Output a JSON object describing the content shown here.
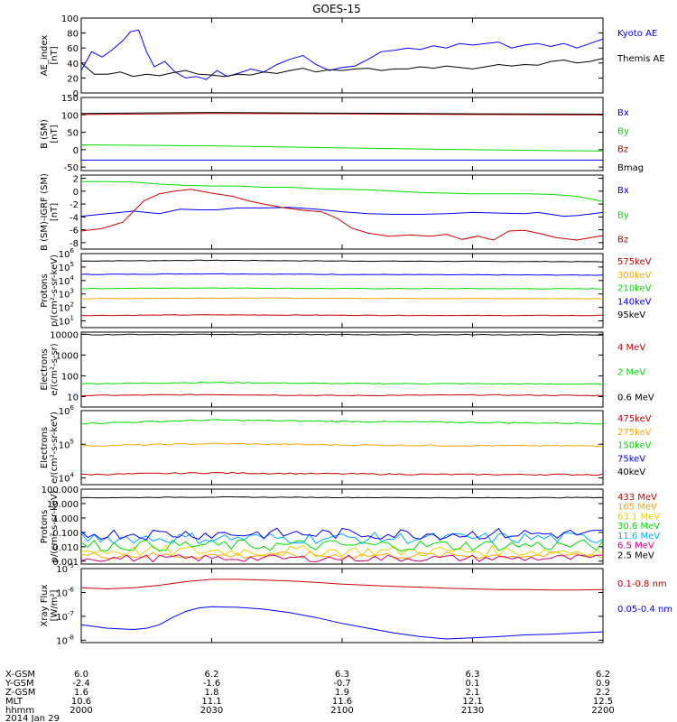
{
  "figure_title": "GOES-15",
  "colors": {
    "black": "#000000",
    "blue": "#0000ff",
    "green": "#00dd00",
    "red": "#cc0000",
    "orange": "#ffa500",
    "yellow": "#e8d000",
    "cyan": "#00aaff",
    "magenta": "#cc0077"
  },
  "x_time_ticks": [
    "2000",
    "2030",
    "2100",
    "2130",
    "2200"
  ],
  "footer": {
    "row_labels": [
      "X-GSM",
      "Y-GSM",
      "Z-GSM",
      "MLT",
      "hhmm",
      "2014 Jan 29"
    ],
    "columns": [
      [
        "6.0",
        "-2.4",
        "1.6",
        "10.6",
        "2000"
      ],
      [
        "6.2",
        "-1.6",
        "1.8",
        "11.1",
        "2030"
      ],
      [
        "6.3",
        "-0.7",
        "1.9",
        "11.6",
        "2100"
      ],
      [
        "6.3",
        "0.1",
        "2.1",
        "12.1",
        "2130"
      ],
      [
        "6.2",
        "0.9",
        "2.2",
        "12.5",
        "2200"
      ]
    ]
  },
  "chart_data": [
    {
      "type": "line",
      "ylabel": [
        "AE_index",
        "[nT]"
      ],
      "ylim": [
        0,
        100
      ],
      "yticks": [
        "0",
        "20",
        "40",
        "60",
        "80",
        "100"
      ],
      "series": [
        {
          "name": "Kyoto AE",
          "color": "blue",
          "x": [
            0,
            4,
            8,
            12,
            16,
            19,
            22,
            25,
            28,
            32,
            36,
            40,
            44,
            48,
            52,
            56,
            60,
            65,
            70,
            75,
            80,
            85,
            90,
            95,
            100,
            105,
            110,
            115,
            120,
            125,
            130,
            135,
            140,
            145,
            150,
            155,
            160,
            165,
            170,
            175,
            180,
            185,
            190,
            195,
            200
          ],
          "y": [
            30,
            55,
            48,
            58,
            70,
            82,
            84,
            55,
            35,
            42,
            28,
            20,
            22,
            18,
            30,
            22,
            26,
            32,
            28,
            38,
            45,
            50,
            38,
            30,
            34,
            36,
            45,
            55,
            57,
            60,
            58,
            63,
            60,
            66,
            64,
            66,
            68,
            60,
            64,
            66,
            62,
            66,
            60,
            66,
            72
          ]
        },
        {
          "name": "Themis AE",
          "color": "black",
          "x": [
            0,
            5,
            10,
            15,
            20,
            25,
            30,
            35,
            40,
            45,
            50,
            55,
            60,
            65,
            70,
            75,
            80,
            85,
            90,
            95,
            100,
            105,
            110,
            115,
            120,
            125,
            130,
            135,
            140,
            145,
            150,
            155,
            160,
            165,
            170,
            175,
            180,
            185,
            190,
            195,
            200
          ],
          "y": [
            40,
            25,
            25,
            28,
            22,
            25,
            23,
            27,
            30,
            25,
            24,
            22,
            25,
            24,
            28,
            26,
            30,
            33,
            28,
            31,
            30,
            32,
            33,
            30,
            32,
            32,
            35,
            33,
            36,
            34,
            32,
            35,
            38,
            36,
            38,
            37,
            42,
            44,
            40,
            42,
            46
          ]
        }
      ]
    },
    {
      "type": "line",
      "ylabel": [
        "B (SM)",
        "[nT]"
      ],
      "ylim": [
        -60,
        150
      ],
      "yticks": [
        "-50",
        "0",
        "50",
        "100",
        "150"
      ],
      "series": [
        {
          "name": "Bx",
          "color": "blue",
          "x": [
            0,
            200
          ],
          "y": [
            -30,
            -30
          ]
        },
        {
          "name": "By",
          "color": "green",
          "x": [
            0,
            50,
            100,
            150,
            200
          ],
          "y": [
            14,
            11,
            5,
            0,
            -4
          ]
        },
        {
          "name": "Bz",
          "color": "red",
          "x": [
            0,
            50,
            100,
            150,
            200
          ],
          "y": [
            101,
            104,
            103,
            101,
            100
          ]
        },
        {
          "name": "Bmag",
          "color": "black",
          "x": [
            0,
            50,
            100,
            150,
            200
          ],
          "y": [
            104,
            107,
            105,
            103,
            102
          ]
        }
      ]
    },
    {
      "type": "line",
      "ylabel": [
        "B (SM)-IGRF (SM)",
        "[nT]"
      ],
      "ylim": [
        -9,
        2.5
      ],
      "yticks": [
        "-8",
        "-6",
        "-4",
        "-2",
        "0",
        "2"
      ],
      "series": [
        {
          "name": "Bx",
          "color": "blue",
          "x": [
            0,
            10,
            20,
            25,
            30,
            38,
            45,
            52,
            60,
            70,
            80,
            90,
            100,
            110,
            120,
            130,
            140,
            150,
            160,
            170,
            175,
            180,
            185,
            190,
            200
          ],
          "y": [
            -3.9,
            -3.5,
            -3.1,
            -3.3,
            -3.5,
            -2.8,
            -2.9,
            -2.9,
            -2.6,
            -2.6,
            -2.5,
            -2.8,
            -3.2,
            -3.5,
            -3.6,
            -3.6,
            -3.5,
            -3.3,
            -3.4,
            -3.5,
            -3.3,
            -3.6,
            -3.9,
            -3.8,
            -3.3
          ]
        },
        {
          "name": "By",
          "color": "green",
          "x": [
            0,
            10,
            20,
            30,
            40,
            50,
            60,
            70,
            80,
            90,
            100,
            110,
            120,
            130,
            140,
            150,
            160,
            170,
            180,
            190,
            200
          ],
          "y": [
            1.5,
            1.5,
            1.4,
            1.1,
            0.9,
            0.8,
            0.8,
            0.6,
            0.6,
            0.4,
            0.3,
            0.2,
            0,
            -0.2,
            -0.3,
            -0.4,
            -0.4,
            -0.4,
            -0.5,
            -0.8,
            -1.6
          ]
        },
        {
          "name": "Bz",
          "color": "red",
          "x": [
            0,
            8,
            16,
            24,
            30,
            36,
            42,
            50,
            58,
            64,
            70,
            78,
            86,
            92,
            98,
            104,
            110,
            118,
            126,
            134,
            140,
            146,
            152,
            158,
            164,
            170,
            176,
            182,
            190,
            200
          ],
          "y": [
            -6.2,
            -5.8,
            -4.8,
            -1.5,
            -0.4,
            0,
            0.3,
            -0.3,
            -0.8,
            -1.5,
            -2,
            -2.6,
            -3,
            -3.2,
            -4.2,
            -5.8,
            -6.5,
            -7,
            -6.8,
            -7,
            -6.7,
            -7.5,
            -7,
            -7.6,
            -6.2,
            -6.1,
            -6.6,
            -7.2,
            -7.6,
            -6.9
          ]
        }
      ]
    },
    {
      "type": "line",
      "ylabel": [
        "Protons",
        "p/(cm²-s-sr-keV)"
      ],
      "scale": "log",
      "ylim_exp": [
        0.5,
        6
      ],
      "yticks": [
        {
          "base": "10",
          "exp": "1"
        },
        {
          "base": "10",
          "exp": "2"
        },
        {
          "base": "10",
          "exp": "3"
        },
        {
          "base": "10",
          "exp": "4"
        },
        {
          "base": "10",
          "exp": "5"
        },
        {
          "base": "10",
          "exp": "6"
        }
      ],
      "series": [
        {
          "name": "575keV",
          "color": "black",
          "x": [
            0,
            50,
            100,
            150,
            200
          ],
          "y_exp": [
            5.45,
            5.5,
            5.45,
            5.42,
            5.4
          ]
        },
        {
          "name": "300keV",
          "color": "blue",
          "x": [
            0,
            50,
            100,
            150,
            200
          ],
          "y_exp": [
            4.45,
            4.5,
            4.45,
            4.42,
            4.4
          ]
        },
        {
          "name": "210keV",
          "color": "green",
          "x": [
            0,
            50,
            100,
            150,
            200
          ],
          "y_exp": [
            3.4,
            3.45,
            3.4,
            3.4,
            3.38
          ]
        },
        {
          "name": "140keV",
          "color": "orange",
          "x": [
            0,
            50,
            100,
            150,
            200
          ],
          "y_exp": [
            2.65,
            2.7,
            2.68,
            2.66,
            2.65
          ]
        },
        {
          "name": "95keV",
          "color": "red",
          "x": [
            0,
            50,
            100,
            150,
            200
          ],
          "y_exp": [
            1.4,
            1.45,
            1.42,
            1.4,
            1.4
          ]
        }
      ],
      "legend_colors": [
        "red",
        "orange",
        "green",
        "blue",
        "black"
      ]
    },
    {
      "type": "line",
      "ylabel": [
        "Electrons",
        "e/(cm²-s-sr)"
      ],
      "scale": "log",
      "ylim_exp": [
        0.5,
        4.1
      ],
      "yticks": [
        {
          "base": "10",
          "exp": ""
        },
        {
          "base": "100",
          "exp": ""
        },
        {
          "base": "1000",
          "exp": ""
        },
        {
          "base": "10000",
          "exp": ""
        }
      ],
      "series": [
        {
          "name": "4 MeV",
          "color": "red",
          "x": [
            0,
            50,
            100,
            150,
            200
          ],
          "y_exp": [
            1.05,
            1.1,
            1.05,
            1.08,
            1.05
          ]
        },
        {
          "name": "2 MeV",
          "color": "green",
          "x": [
            0,
            50,
            100,
            150,
            200
          ],
          "y_exp": [
            1.62,
            1.68,
            1.63,
            1.62,
            1.6
          ]
        },
        {
          "name": "0.6 MeV",
          "color": "black",
          "x": [
            0,
            50,
            100,
            150,
            200
          ],
          "y_exp": [
            3.98,
            4.0,
            3.98,
            3.98,
            3.97
          ]
        }
      ]
    },
    {
      "type": "line",
      "ylabel": [
        "Electrons",
        "e/(cm²-s-sr-keV)"
      ],
      "scale": "log",
      "ylim_exp": [
        3.8,
        6
      ],
      "yticks": [
        {
          "base": "10",
          "exp": "4"
        },
        {
          "base": "10",
          "exp": "5"
        },
        {
          "base": "10",
          "exp": "6"
        }
      ],
      "series": [
        {
          "name": "475keV",
          "color": "red",
          "x": [
            0,
            50,
            100,
            150,
            200
          ],
          "y_exp": [
            4.1,
            4.15,
            4.12,
            4.1,
            4.1
          ]
        },
        {
          "name": "275keV",
          "color": "orange",
          "x": [
            0,
            50,
            100,
            150,
            200
          ],
          "y_exp": [
            4.95,
            5.02,
            4.98,
            4.96,
            4.95
          ]
        },
        {
          "name": "150keV",
          "color": "green",
          "x": [
            0,
            50,
            100,
            150,
            200
          ],
          "y_exp": [
            5.62,
            5.72,
            5.68,
            5.65,
            5.62
          ]
        }
      ],
      "legend_extra": [
        {
          "name": "75keV",
          "color": "blue"
        },
        {
          "name": "40keV",
          "color": "black"
        }
      ]
    },
    {
      "type": "line",
      "ylabel": [
        "Protons",
        "p/(cm²-s-sr-keV)"
      ],
      "scale": "log",
      "ylim_exp": [
        -3.2,
        2
      ],
      "yticks": [
        {
          "base": "0.001",
          "exp": ""
        },
        {
          "base": "0.010",
          "exp": ""
        },
        {
          "base": "0.100",
          "exp": ""
        },
        {
          "base": "1.000",
          "exp": ""
        },
        {
          "base": "10.000",
          "exp": ""
        },
        {
          "base": "100.000",
          "exp": ""
        }
      ],
      "series": [
        {
          "name": "433 MeV",
          "color": "black",
          "x": [
            0,
            50,
            100,
            150,
            200
          ],
          "y_exp": [
            1.4,
            1.45,
            1.42,
            1.4,
            1.42
          ]
        },
        {
          "name": "165 MeV",
          "color": "orange",
          "x": [
            0,
            200
          ],
          "y_exp": [
            -2.6,
            -2.6
          ],
          "noisy": true
        },
        {
          "name": "63.1 MeV",
          "color": "yellow",
          "x": [
            0,
            200
          ],
          "y_exp": [
            -2.3,
            -2.3
          ],
          "noisy": true
        },
        {
          "name": "30.6 MeV",
          "color": "green",
          "x": [
            0,
            200
          ],
          "y_exp": [
            -1.9,
            -1.9
          ],
          "noisy": true
        },
        {
          "name": "11.6 MeV",
          "color": "cyan",
          "x": [
            0,
            200
          ],
          "y_exp": [
            -1.4,
            -1.4
          ],
          "noisy": true
        },
        {
          "name": "6.5 MeV",
          "color": "magenta",
          "x": [
            0,
            200
          ],
          "y_exp": [
            -2.8,
            -2.8
          ],
          "noisy": true
        },
        {
          "name": "2.5 MeV",
          "color": "blue",
          "x": [
            0,
            200
          ],
          "y_exp": [
            -1.1,
            -1.1
          ],
          "noisy": true
        }
      ],
      "legend_colors": [
        "red",
        "orange",
        "yellow",
        "green",
        "cyan",
        "magenta",
        "black"
      ]
    },
    {
      "type": "line",
      "ylabel": [
        "Xray Flux",
        "[W/m²]"
      ],
      "scale": "log",
      "ylim_exp": [
        -8.1,
        -5
      ],
      "yticks": [
        {
          "base": "10",
          "exp": "-8"
        },
        {
          "base": "10",
          "exp": "-7"
        },
        {
          "base": "10",
          "exp": "-6"
        },
        {
          "base": "10",
          "exp": "-5"
        }
      ],
      "series": [
        {
          "name": "0.1-0.8 nm",
          "color": "red",
          "x": [
            0,
            10,
            20,
            30,
            40,
            50,
            60,
            70,
            80,
            90,
            100,
            110,
            120,
            130,
            140,
            150,
            160,
            170,
            180,
            190,
            200
          ],
          "y_exp": [
            -5.8,
            -5.85,
            -5.8,
            -5.7,
            -5.55,
            -5.45,
            -5.45,
            -5.48,
            -5.52,
            -5.58,
            -5.65,
            -5.7,
            -5.75,
            -5.78,
            -5.82,
            -5.85,
            -5.88,
            -5.88,
            -5.9,
            -5.9,
            -5.88
          ]
        },
        {
          "name": "0.05-0.4 nm",
          "color": "blue",
          "x": [
            0,
            10,
            20,
            25,
            30,
            35,
            40,
            45,
            50,
            60,
            70,
            80,
            90,
            100,
            110,
            120,
            130,
            140,
            150,
            160,
            170,
            180,
            190,
            200
          ],
          "y_exp": [
            -7.35,
            -7.5,
            -7.55,
            -7.5,
            -7.35,
            -7.05,
            -6.8,
            -6.65,
            -6.6,
            -6.62,
            -6.7,
            -6.85,
            -7.05,
            -7.3,
            -7.5,
            -7.7,
            -7.85,
            -7.95,
            -7.9,
            -7.85,
            -7.78,
            -7.75,
            -7.7,
            -7.65
          ]
        }
      ]
    }
  ]
}
